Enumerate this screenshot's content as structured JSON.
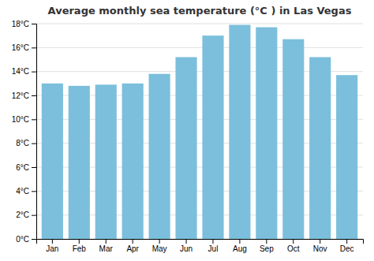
{
  "chart_data": {
    "type": "bar",
    "title": "Average monthly sea temperature (°C ) in Las Vegas",
    "categories": [
      "Jan",
      "Feb",
      "Mar",
      "Apr",
      "May",
      "Jun",
      "Jul",
      "Aug",
      "Sep",
      "Oct",
      "Nov",
      "Dec"
    ],
    "values": [
      13.0,
      12.8,
      12.9,
      13.0,
      13.8,
      15.2,
      17.0,
      17.9,
      17.7,
      16.7,
      15.2,
      13.7
    ],
    "color": "#7bbfdc",
    "ylim": [
      0,
      18
    ],
    "yticks": [
      {
        "value": 0,
        "label": "0°C"
      },
      {
        "value": 2,
        "label": "2°C"
      },
      {
        "value": 4,
        "label": "4°C"
      },
      {
        "value": 6,
        "label": "6°C"
      },
      {
        "value": 8,
        "label": "8°C"
      },
      {
        "value": 10,
        "label": "10°C"
      },
      {
        "value": 12,
        "label": "12°C"
      },
      {
        "value": 14,
        "label": "14°C"
      },
      {
        "value": 16,
        "label": "16°C"
      },
      {
        "value": 18,
        "label": "18°C"
      }
    ],
    "grid": true
  }
}
